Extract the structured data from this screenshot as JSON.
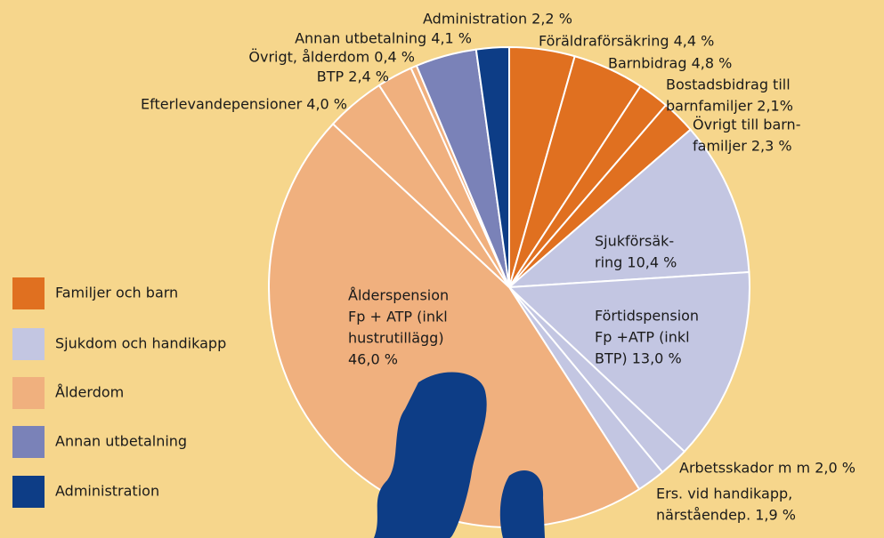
{
  "chart_data": {
    "type": "pie",
    "categories": [
      [
        "Föräldraförsäkring 4,4 %"
      ],
      [
        "Barnbidrag 4,8 %"
      ],
      [
        "Bostadsbidrag till",
        "barnfamiljer 2,1%"
      ],
      [
        "Övrigt till barn-",
        "familjer 2,3 %"
      ],
      [
        "Sjukförsäk-",
        "ring 10,4 %"
      ],
      [
        "Förtidspension",
        "Fp +ATP (inkl",
        "BTP) 13,0 %"
      ],
      [
        "Arbetsskador m m 2,0 %"
      ],
      [
        "Ers. vid handikapp,",
        "närståendep. 1,9 %"
      ],
      [
        "Ålderspension",
        "Fp + ATP (inkl",
        "hustrutillägg)",
        "46,0 %"
      ],
      [
        "Efterlevandepensioner 4,0 %"
      ],
      [
        "BTP 2,4 %"
      ],
      [
        "Övrigt, ålderdom 0,4 %"
      ],
      [
        "Annan utbetalning 4,1 %"
      ],
      [
        "Administration 2,2 %"
      ]
    ],
    "values": [
      4.4,
      4.8,
      2.1,
      2.3,
      10.4,
      13.0,
      2.0,
      1.9,
      46.0,
      4.0,
      2.4,
      0.4,
      4.1,
      2.2
    ],
    "colors": [
      "#e07020",
      "#e07020",
      "#e07020",
      "#e07020",
      "#c3c6e2",
      "#c3c6e2",
      "#c3c6e2",
      "#c3c6e2",
      "#f0b07e",
      "#f0b07e",
      "#f0b07e",
      "#f0b07e",
      "#7a82b8",
      "#0d3d86"
    ],
    "legend": [
      {
        "name": "Familjer och barn",
        "color": "#e07020"
      },
      {
        "name": "Sjukdom och handikapp",
        "color": "#c3c6e2"
      },
      {
        "name": "Ålderdom",
        "color": "#f0b07e"
      },
      {
        "name": "Annan utbetalning",
        "color": "#7a82b8"
      },
      {
        "name": "Administration",
        "color": "#0d3d86"
      }
    ]
  }
}
